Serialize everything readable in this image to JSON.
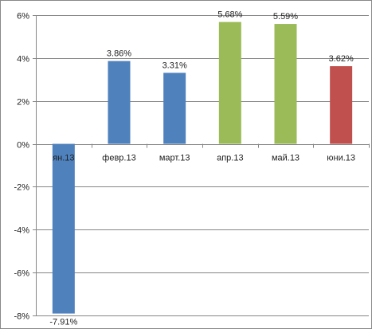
{
  "chart_data": {
    "type": "bar",
    "title": "",
    "xlabel": "",
    "ylabel": "",
    "ylim": [
      -8,
      6
    ],
    "yticks": [
      6,
      4,
      2,
      0,
      -2,
      -4,
      -6,
      -8
    ],
    "ytick_labels": [
      "6%",
      "4%",
      "2%",
      "0%",
      "-2%",
      "-4%",
      "-6%",
      "-8%"
    ],
    "categories": [
      "ян.13",
      "февр.13",
      "март.13",
      "апр.13",
      "май.13",
      "юни.13"
    ],
    "values": [
      -7.91,
      3.86,
      3.31,
      5.68,
      5.59,
      3.62
    ],
    "data_labels": [
      "-7.91%",
      "3.86%",
      "3.31%",
      "5.68%",
      "5.59%",
      "3.62%"
    ],
    "bar_colors": [
      "#4f81bd",
      "#4f81bd",
      "#4f81bd",
      "#9bbb59",
      "#9bbb59",
      "#c0504d"
    ],
    "grid": true,
    "legend": "none",
    "colors": {
      "grid": "#868686",
      "axis": "#868686",
      "blue": "#4f81bd",
      "green": "#9bbb59",
      "red": "#c0504d"
    }
  }
}
